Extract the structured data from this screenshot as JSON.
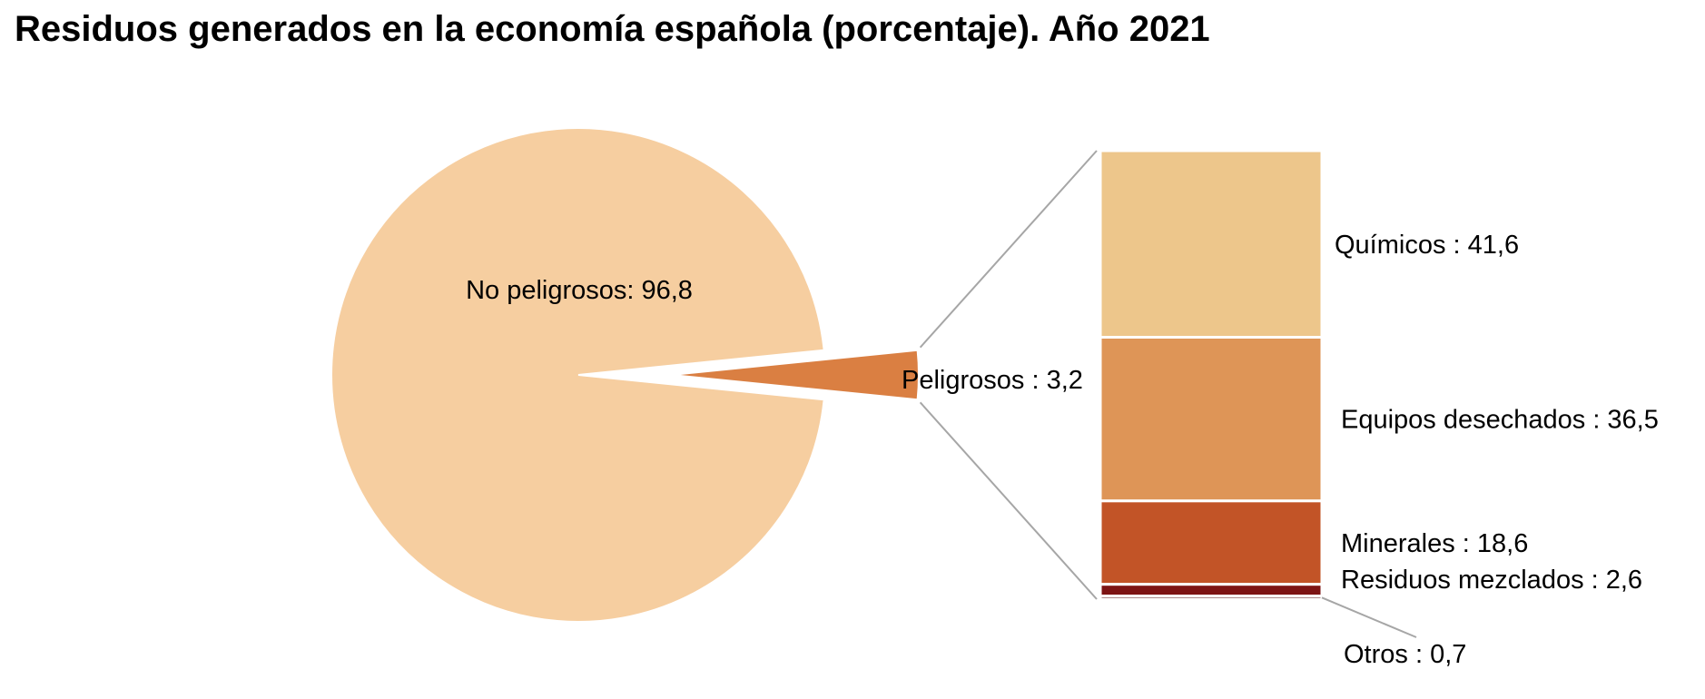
{
  "chart_data": {
    "type": "pie",
    "title": "Residuos generados en la economía española (porcentaje). Año 2021",
    "pie": {
      "slices": [
        {
          "label": "No peligrosos: 96,8",
          "value": 96.8,
          "color": "#F6CEA0"
        },
        {
          "label": "Peligrosos : 3,2",
          "value": 3.2,
          "color": "#DA7F42"
        }
      ]
    },
    "breakdown": {
      "type": "stacked-bar",
      "of": "Peligrosos",
      "segments": [
        {
          "label": "Químicos : 41,6",
          "value": 41.6,
          "color": "#EDC68B"
        },
        {
          "label": "Equipos desechados : 36,5",
          "value": 36.5,
          "color": "#DE9557"
        },
        {
          "label": "Minerales : 18,6",
          "value": 18.6,
          "color": "#C25427"
        },
        {
          "label": "Residuos mezclados : 2,6",
          "value": 2.6,
          "color": "#7D1414"
        },
        {
          "label": "Otros : 0,7",
          "value": 0.7,
          "color": "#4E0A0A"
        }
      ]
    },
    "connector_color": "#A6A6A6"
  }
}
